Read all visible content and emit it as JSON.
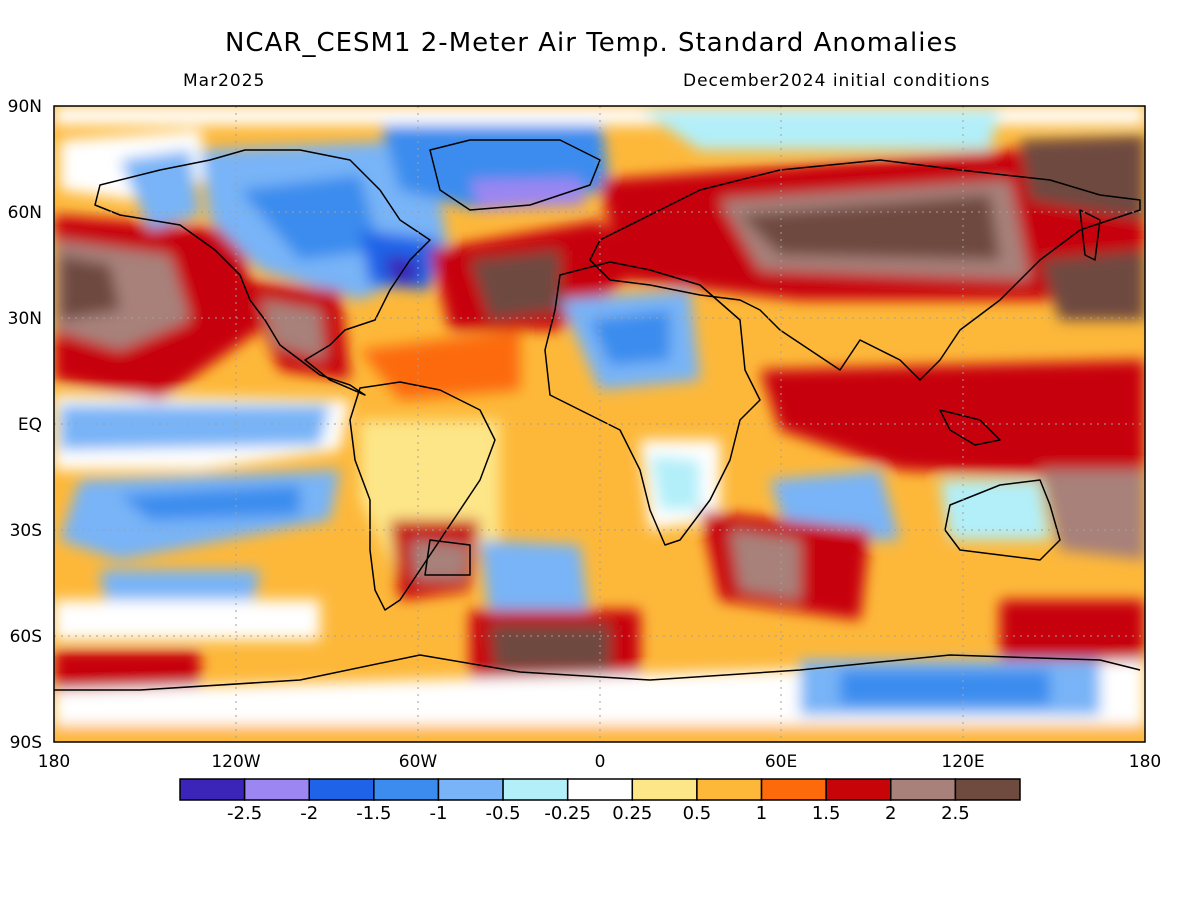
{
  "title": "NCAR_CESM1 2-Meter Air Temp. Standard Anomalies",
  "subtitle_left": "Mar2025",
  "subtitle_right": "December2024 initial conditions",
  "lat_labels": [
    "90N",
    "60N",
    "30N",
    "EQ",
    "30S",
    "60S",
    "90S"
  ],
  "lon_labels": [
    "180",
    "120W",
    "60W",
    "0",
    "60E",
    "120E",
    "180"
  ],
  "colorbar": {
    "colors": [
      "#3a25b8",
      "#9b86f2",
      "#1f63e8",
      "#3b8cee",
      "#78b4f7",
      "#b2eff9",
      "#ffffff",
      "#fde688",
      "#fdb83a",
      "#fc6a0c",
      "#c70408",
      "#a7817a",
      "#6e4a3f"
    ],
    "labels": [
      "-2.5",
      "-2",
      "-1.5",
      "-1",
      "-0.5",
      "-0.25",
      "0.25",
      "0.5",
      "1",
      "1.5",
      "2",
      "2.5"
    ]
  }
}
